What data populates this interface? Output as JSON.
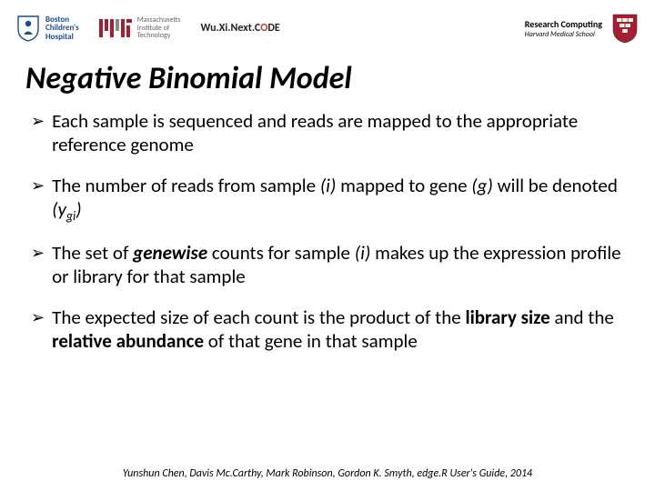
{
  "header": {
    "bch": {
      "line1": "Boston",
      "line2": "Children's",
      "line3": "Hospital",
      "color": "#1a4d8f"
    },
    "mit": {
      "line1": "Massachusetts",
      "line2": "Institute of",
      "line3": "Technology",
      "color": "#a31f34"
    },
    "wuxi": {
      "prefix": "Wu.Xi.Next.C",
      "red": "O",
      "suffix": "DE"
    },
    "rc": {
      "line1": "Research Computing",
      "line2": "Harvard Medical School",
      "shield_color": "#a31f34"
    }
  },
  "title": "Negative Binomial Model",
  "bullets": [
    {
      "html": "Each sample is sequenced and reads are mapped to the appropriate reference genome"
    },
    {
      "html": "The number of reads from sample <em>(i)</em> mapped to gene <em>(g)</em> will be denoted <em>(y<span class=\"sub\">gi</span>)</em>"
    },
    {
      "html": "The set of <strong><em>genewise</em></strong> counts for sample <em>(i)</em> makes up the expression profile or library for that sample"
    },
    {
      "html": "The expected size of each count is the product of the <strong>library size</strong> and the <strong>relative abundance</strong> of that gene in that sample"
    }
  ],
  "citation": "Yunshun Chen, Davis Mc.Carthy, Mark Robinson, Gordon K. Smyth, edge.R User's Guide, 2014",
  "colors": {
    "background": "#ffffff",
    "text": "#000000",
    "arrow": "#000000"
  }
}
